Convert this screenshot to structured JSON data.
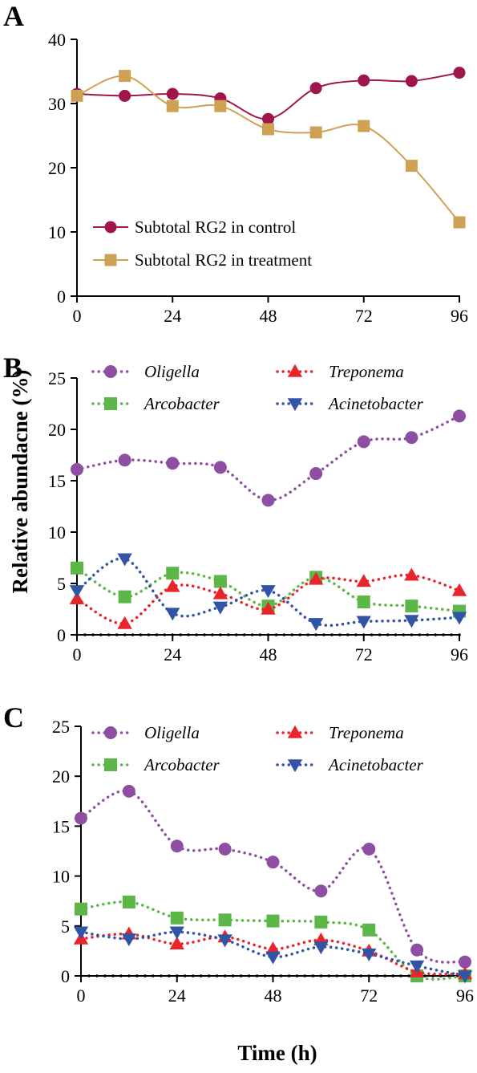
{
  "figure": {
    "ylabel": "Relative abundacne  (%)",
    "xlabel": "Time (h)"
  },
  "chart_data": [
    {
      "panel": "A",
      "type": "line",
      "x": [
        0,
        12,
        24,
        36,
        48,
        60,
        72,
        84,
        96
      ],
      "xticks": [
        0,
        24,
        48,
        72,
        96
      ],
      "yticks": [
        0,
        10,
        20,
        30,
        40
      ],
      "xlim": [
        0,
        96
      ],
      "ylim": [
        0,
        40
      ],
      "grid": false,
      "legend": "bottom-left",
      "series": [
        {
          "name": "Subtotal RG2 in control",
          "marker": "circle",
          "color": "#A0154C",
          "values": [
            31.5,
            31.2,
            31.5,
            30.8,
            27.6,
            32.4,
            33.6,
            33.5,
            34.8
          ]
        },
        {
          "name": "Subtotal RG2 in treatment",
          "marker": "square",
          "color": "#CFA154",
          "values": [
            31.2,
            34.3,
            29.6,
            29.6,
            26.0,
            25.5,
            26.5,
            20.3,
            11.5
          ]
        }
      ]
    },
    {
      "panel": "B",
      "type": "line",
      "x": [
        0,
        12,
        24,
        36,
        48,
        60,
        72,
        84,
        96
      ],
      "xticks": [
        0,
        24,
        48,
        72,
        96
      ],
      "yticks": [
        0,
        5,
        10,
        15,
        20,
        25
      ],
      "xlim": [
        0,
        96
      ],
      "ylim": [
        0,
        25
      ],
      "grid": false,
      "legend": "top",
      "series": [
        {
          "name": "Oligella",
          "marker": "circle",
          "color": "#8E4FA3",
          "values": [
            16.1,
            17.0,
            16.7,
            16.3,
            13.1,
            15.7,
            18.8,
            19.2,
            21.3
          ]
        },
        {
          "name": "Arcobacter",
          "marker": "square",
          "color": "#5CB648",
          "values": [
            6.5,
            3.7,
            6.0,
            5.2,
            2.8,
            5.6,
            3.2,
            2.8,
            2.3
          ]
        },
        {
          "name": "Treponema",
          "marker": "triangle-up",
          "color": "#E8252B",
          "values": [
            3.5,
            1.1,
            4.7,
            4.0,
            2.5,
            5.4,
            5.2,
            5.8,
            4.3
          ]
        },
        {
          "name": "Acinetobacter",
          "marker": "triangle-down",
          "color": "#3155A4",
          "values": [
            4.3,
            7.4,
            2.1,
            2.7,
            4.3,
            1.1,
            1.3,
            1.4,
            1.7
          ]
        }
      ]
    },
    {
      "panel": "C",
      "type": "line",
      "x": [
        0,
        12,
        24,
        36,
        48,
        60,
        72,
        84,
        96
      ],
      "xticks": [
        0,
        24,
        48,
        72,
        96
      ],
      "yticks": [
        0,
        5,
        10,
        15,
        20,
        25
      ],
      "xlim": [
        0,
        96
      ],
      "ylim": [
        0,
        25
      ],
      "grid": false,
      "legend": "top",
      "series": [
        {
          "name": "Oligella",
          "marker": "circle",
          "color": "#8E4FA3",
          "values": [
            15.8,
            18.5,
            13.0,
            12.7,
            11.4,
            8.5,
            12.7,
            2.6,
            1.4
          ]
        },
        {
          "name": "Arcobacter",
          "marker": "square",
          "color": "#5CB648",
          "values": [
            6.7,
            7.4,
            5.8,
            5.6,
            5.5,
            5.4,
            4.6,
            0.0,
            0.0
          ]
        },
        {
          "name": "Treponema",
          "marker": "triangle-up",
          "color": "#E8252B",
          "values": [
            3.7,
            4.2,
            3.2,
            3.9,
            2.7,
            3.6,
            2.5,
            0.4,
            0.2
          ]
        },
        {
          "name": "Acinetobacter",
          "marker": "triangle-down",
          "color": "#3155A4",
          "values": [
            4.4,
            3.7,
            4.4,
            3.6,
            1.9,
            2.9,
            2.2,
            1.0,
            0.0
          ]
        }
      ]
    }
  ]
}
